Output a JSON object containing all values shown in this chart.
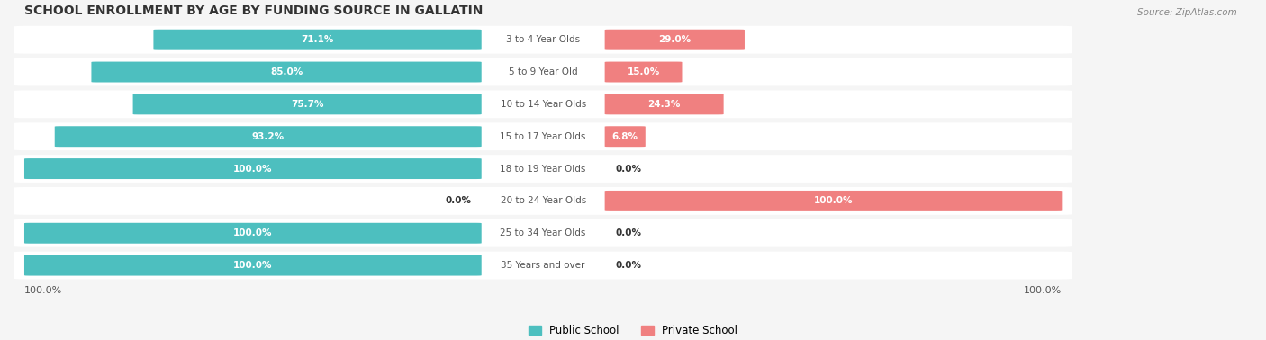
{
  "title": "SCHOOL ENROLLMENT BY AGE BY FUNDING SOURCE IN GALLATIN",
  "source": "Source: ZipAtlas.com",
  "categories": [
    "3 to 4 Year Olds",
    "5 to 9 Year Old",
    "10 to 14 Year Olds",
    "15 to 17 Year Olds",
    "18 to 19 Year Olds",
    "20 to 24 Year Olds",
    "25 to 34 Year Olds",
    "35 Years and over"
  ],
  "public_values": [
    71.1,
    85.0,
    75.7,
    93.2,
    100.0,
    0.0,
    100.0,
    100.0
  ],
  "private_values": [
    29.0,
    15.0,
    24.3,
    6.8,
    0.0,
    100.0,
    0.0,
    0.0
  ],
  "public_color": "#4DBFBF",
  "private_color": "#F08080",
  "public_label": "Public School",
  "private_label": "Private School",
  "bg_color": "#f5f5f5",
  "bar_bg_color": "#ffffff",
  "text_color_white": "#ffffff",
  "text_color_dark": "#333333",
  "label_color": "#555555",
  "bottom_left_label": "100.0%",
  "bottom_right_label": "100.0%"
}
